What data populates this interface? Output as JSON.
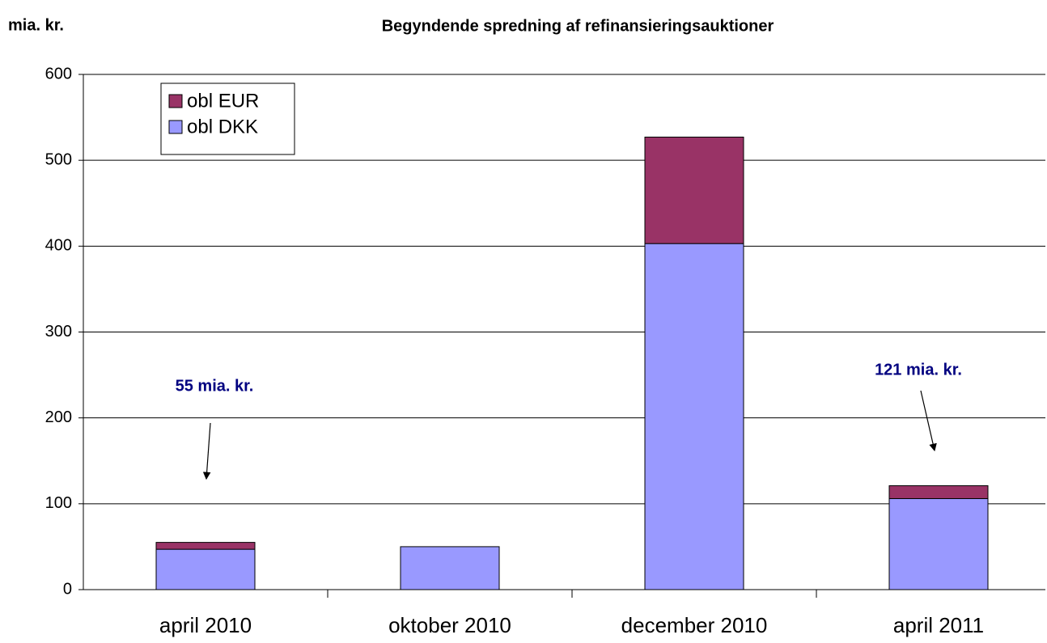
{
  "chart_data": {
    "type": "stacked_bar",
    "title": "Begyndende spredning af refinansieringsauktioner",
    "y_axis_label": "mia. kr.",
    "categories": [
      "april 2010",
      "oktober 2010",
      "december 2010",
      "april 2011"
    ],
    "series": [
      {
        "name": "obl DKK",
        "color": "#9999ff",
        "values": [
          47,
          50,
          403,
          106
        ]
      },
      {
        "name": "obl EUR",
        "color": "#993366",
        "values": [
          8,
          0,
          124,
          15
        ]
      }
    ],
    "annotations": [
      "55 mia. kr.",
      "121 mia. kr."
    ],
    "ylim": [
      0,
      600
    ],
    "yticks": [
      0,
      100,
      200,
      300,
      400,
      500,
      600
    ],
    "grid": true,
    "legend": "upper left"
  }
}
